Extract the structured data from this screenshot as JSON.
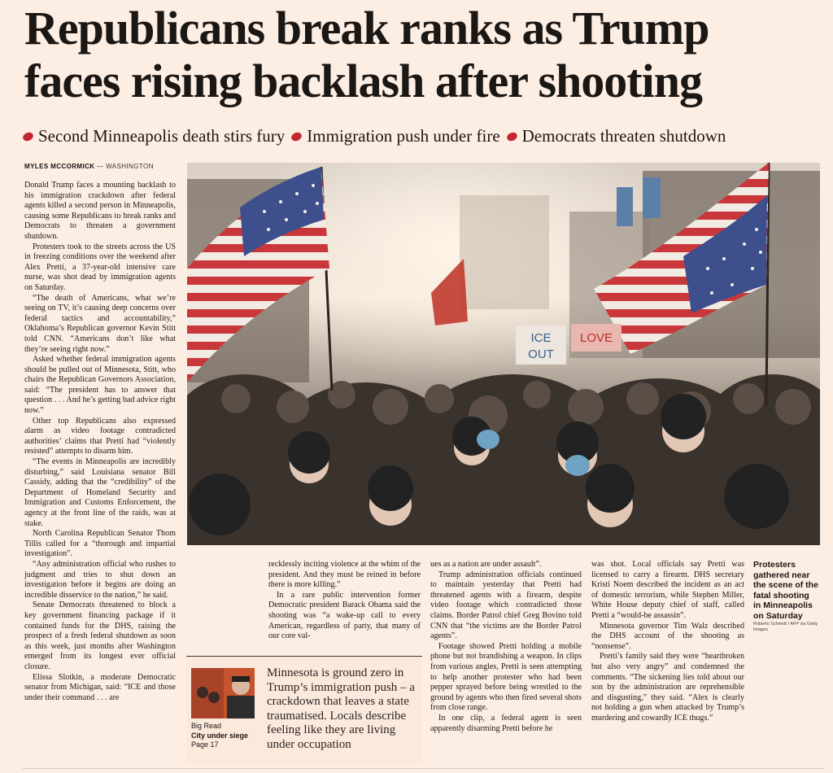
{
  "headline": {
    "line1": "Republicans break ranks as Trump",
    "line2": "faces rising backlash after shooting"
  },
  "subheads": [
    "Second Minneapolis death stirs fury",
    "Immigration push under fire",
    "Democrats threaten shutdown"
  ],
  "colors": {
    "bullet": "#c1272d",
    "background": "#fdeee4"
  },
  "byline": {
    "author": "MYLES MCCORMICK",
    "location": "— WASHINGTON"
  },
  "article": {
    "col1": [
      "Donald Trump faces a mounting backlash to his immigration crackdown after federal agents killed a second person in Minneapolis, causing some Republicans to break ranks and Democrats to threaten a government shutdown.",
      "Protesters took to the streets across the US in freezing conditions over the weekend after Alex Pretti, a 37-year-old intensive care nurse, was shot dead by immigration agents on Saturday.",
      "“The death of Americans, what we’re seeing on TV, it’s causing deep concerns over federal tactics and accountability,” Oklahoma’s Republican governor Kevin Stitt told CNN. “Americans don’t like what they’re seeing right now.”",
      "Asked whether federal immigration agents should be pulled out of Minnesota, Stitt, who chairs the Republican Governors Association, said: “The president has to answer that question . . . And he’s getting bad advice right now.”",
      "Other top Republicans also expressed alarm as video footage contradicted authorities’ claims that Pretti had “violently resisted” attempts to disarm him.",
      "“The events in Minneapolis are incredibly disturbing,” said Louisiana senator Bill Cassidy, adding that the “credibility” of the Department of Homeland Security and Immigration and Customs Enforcement, the agency at the front line of the raids, was at stake.",
      "North Carolina Republican Senator Thom Tillis called for a “thorough and impartial investigation”.",
      "“Any administration official who rushes to judgment and tries to shut down an investigation before it begins are doing an incredible disservice to the nation,” he said.",
      "Senate Democrats threatened to block a key government financing package if it contained funds for the DHS, raising the prospect of a fresh federal shutdown as soon as this week, just months after Washington emerged from its longest ever official closure.",
      "Elissa Slotkin, a moderate Democratic senator from Michigan, said: “ICE and those under their command . . . are"
    ],
    "col2": [
      "recklessly inciting violence at the whim of the president. And they must be reined in before there is more killing.”",
      "In a rare public intervention former Democratic president Barack Obama said the shooting was “a wake-up call to every American, regardless of party, that many of our core val-"
    ],
    "col3": [
      "ues as a nation are under assault”.",
      "Trump administration officials continued to maintain yesterday that Pretti had threatened agents with a firearm, despite video footage which contradicted those claims. Border Patrol chief Greg Bovino told CNN that “the victims are the Border Patrol agents”.",
      "Footage showed Pretti holding a mobile phone but not brandishing a weapon. In clips from various angles, Pretti is seen attempting to help another protester who had been pepper sprayed before being wrestled to the ground by agents who then fired several shots from close range.",
      "In one clip, a federal agent is seen apparently disarming Pretti before he"
    ],
    "col4": [
      "was shot. Local officials say Pretti was licensed to carry a firearm. DHS secretary Kristi Noem described the incident as an act of domestic terrorism, while Stephen Miller, White House deputy chief of staff, called Pretti a “would-be assassin”.",
      "Minnesota governor Tim Walz described the DHS account of the shooting as “nonsense”.",
      "Pretti’s family said they were “heartbroken but also very angry” and condemned the comments. “The sickening lies told about our son by the administration are reprehensible and disgusting,” they said. “Alex is clearly not holding a gun when attacked by Trump’s murdering and cowardly ICE thugs.”"
    ]
  },
  "photo": {
    "signs": [
      "ICE",
      "OUT",
      "LOVE"
    ],
    "caption": "Protesters gathered near the scene of the fatal shooting in Minneapolis on Saturday",
    "credit": "Roberto Schmidt / AFP via Getty Images"
  },
  "promo": {
    "label": "Big Read",
    "title": "City under siege",
    "page": "Page 17",
    "text": "Minnesota is ground zero in Trump’s immigration push – a crackdown that leaves a state traumatised. Locals describe feeling like they are living under occupation"
  }
}
